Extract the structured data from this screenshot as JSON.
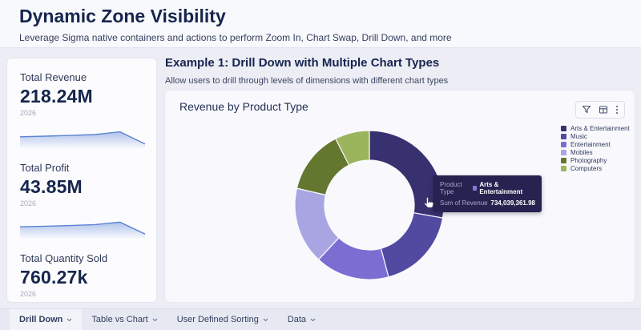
{
  "page": {
    "title": "Dynamic Zone Visibility",
    "subtitle": "Leverage Sigma native containers and actions to perform Zoom In, Chart Swap, Drill Down, and more"
  },
  "kpis": [
    {
      "label": "Total Revenue",
      "value": "218.24M",
      "period": "2026",
      "spark": [
        0.4,
        0.43,
        0.46,
        0.5,
        0.62,
        0.08
      ]
    },
    {
      "label": "Total Profit",
      "value": "43.85M",
      "period": "2026",
      "spark": [
        0.42,
        0.45,
        0.48,
        0.52,
        0.63,
        0.1
      ]
    },
    {
      "label": "Total Quantity Sold",
      "value": "760.27k",
      "period": "2026",
      "spark": [
        0.44,
        0.47,
        0.5,
        0.55,
        0.68,
        0.12
      ]
    }
  ],
  "example": {
    "title": "Example 1: Drill Down with Multiple Chart Types",
    "subtitle": "Allow users to drill through levels of dimensions with different chart types"
  },
  "chart_card": {
    "title": "Revenue by Product Type",
    "toolbar_icons": [
      "filter-icon",
      "table-icon",
      "kebab-menu-icon"
    ]
  },
  "tooltip": {
    "rows": [
      {
        "label": "Product Type",
        "value": "Arts & Entertainment"
      },
      {
        "label": "Sum of Revenue",
        "value": "734,039,361.98"
      }
    ],
    "swatch_color": "#837bd4",
    "background": "#272350"
  },
  "tabs": [
    {
      "label": "Drill Down",
      "active": true
    },
    {
      "label": "Table vs Chart",
      "active": false
    },
    {
      "label": "User Defined Sorting",
      "active": false
    },
    {
      "label": "Data",
      "active": false
    }
  ],
  "colors": {
    "page_background": "#ecedf5",
    "card_background": "#fcfcfe",
    "heading_text": "#16254e",
    "spark_line": "#5b82d2",
    "spark_fill_top": "#a9bde9"
  },
  "chart_data": [
    {
      "type": "pie",
      "donut": true,
      "title": "Revenue by Product Type",
      "categories": [
        "Arts & Entertainment",
        "Music",
        "Entertainment",
        "Mobiles",
        "Photography",
        "Computers"
      ],
      "values": [
        27.8,
        18.1,
        16.1,
        16.7,
        13.9,
        7.5
      ],
      "values_unit": "percent of total, estimated from arc angles; starts at 12 o'clock, clockwise",
      "colors": [
        "#383170",
        "#514aa0",
        "#7a6ed3",
        "#a9a5e2",
        "#64772f",
        "#9ab55c"
      ],
      "legend_position": "right",
      "hovered_segment": {
        "category": "Arts & Entertainment",
        "sum_of_revenue": "734,039,361.98"
      }
    },
    {
      "type": "area",
      "title": "Total Revenue sparkline (2026)",
      "values": [
        0.4,
        0.43,
        0.46,
        0.5,
        0.62,
        0.08
      ]
    },
    {
      "type": "area",
      "title": "Total Profit sparkline (2026)",
      "values": [
        0.42,
        0.45,
        0.48,
        0.52,
        0.63,
        0.1
      ]
    },
    {
      "type": "area",
      "title": "Total Quantity Sold sparkline (2026)",
      "values": [
        0.44,
        0.47,
        0.5,
        0.55,
        0.68,
        0.12
      ]
    }
  ]
}
